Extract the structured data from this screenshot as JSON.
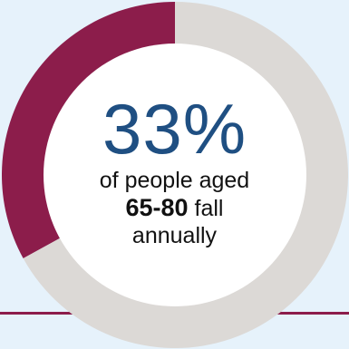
{
  "chart_data": {
    "type": "pie",
    "values": [
      33,
      67
    ],
    "colors": [
      "#8c1d4b",
      "#dcd9d6"
    ],
    "percent_label": "33%",
    "text_line1": "of people aged",
    "text_bold": "65-80",
    "text_rest": " fall",
    "text_line3": "annually"
  },
  "background_color": "#e6f2fb",
  "rule_color": "#8c1d4b",
  "center_color": "#ffffff"
}
